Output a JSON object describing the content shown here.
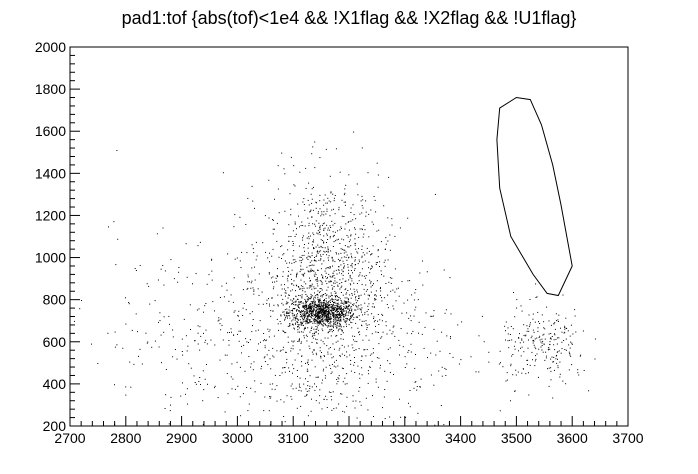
{
  "chart_data": {
    "type": "scatter",
    "title": "pad1:tof {abs(tof)<1e4 && !X1flag && !X2flag && !U1flag}",
    "xlabel": "",
    "ylabel": "",
    "xlim": [
      2700,
      3700
    ],
    "ylim": [
      200,
      2000
    ],
    "x_ticks": [
      2700,
      2800,
      2900,
      3000,
      3100,
      3200,
      3300,
      3400,
      3500,
      3600,
      3700
    ],
    "y_ticks": [
      200,
      400,
      600,
      800,
      1000,
      1200,
      1400,
      1600,
      1800,
      2000
    ],
    "grid": false,
    "legend": "none",
    "marker_color": "#000000",
    "clusters": [
      {
        "label": "dense core",
        "x_center": 3150,
        "y_center": 740,
        "x_sd": 30,
        "y_sd": 35,
        "count": 900
      },
      {
        "label": "main halo",
        "x_center": 3160,
        "y_center": 900,
        "x_sd": 55,
        "y_sd": 240,
        "count": 1100
      },
      {
        "label": "broad background",
        "x_center": 3100,
        "y_center": 620,
        "x_sd": 160,
        "y_sd": 250,
        "count": 750
      },
      {
        "label": "right group",
        "x_center": 3550,
        "y_center": 580,
        "x_sd": 40,
        "y_sd": 90,
        "count": 230
      }
    ],
    "cut_contour": {
      "x": [
        3470,
        3500,
        3525,
        3545,
        3565,
        3580,
        3600,
        3575,
        3555,
        3530,
        3490,
        3470,
        3465,
        3470
      ],
      "y": [
        1710,
        1760,
        1750,
        1630,
        1440,
        1250,
        960,
        820,
        830,
        920,
        1100,
        1330,
        1560,
        1710
      ]
    }
  }
}
